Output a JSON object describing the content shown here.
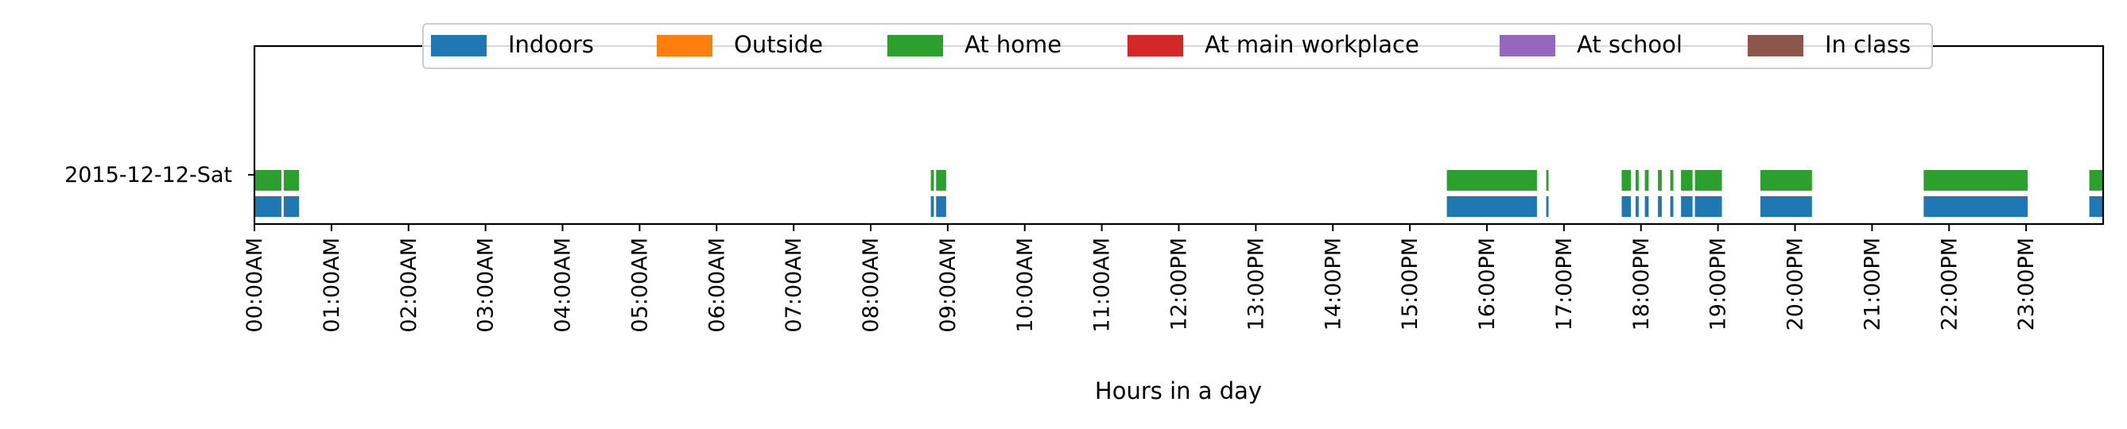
{
  "chart_data": {
    "type": "bar",
    "orientation": "horizontal-timeline",
    "xlabel": "Hours in a day",
    "xlim": [
      0,
      24
    ],
    "x_tick_labels": [
      "00:00AM",
      "01:00AM",
      "02:00AM",
      "03:00AM",
      "04:00AM",
      "05:00AM",
      "06:00AM",
      "07:00AM",
      "08:00AM",
      "09:00AM",
      "10:00AM",
      "11:00AM",
      "12:00PM",
      "13:00PM",
      "14:00PM",
      "15:00PM",
      "16:00PM",
      "17:00PM",
      "18:00PM",
      "19:00PM",
      "20:00PM",
      "21:00PM",
      "22:00PM",
      "23:00PM"
    ],
    "row_label": "2015-12-12-Sat",
    "legend_position": "top-center",
    "grid": false,
    "legend": [
      {
        "name": "Indoors",
        "color": "#1f77b4"
      },
      {
        "name": "Outside",
        "color": "#ff7f0e"
      },
      {
        "name": "At home",
        "color": "#2ca02c"
      },
      {
        "name": "At main workplace",
        "color": "#d62728"
      },
      {
        "name": "At school",
        "color": "#9467bd"
      },
      {
        "name": "In class",
        "color": "#8c564b"
      }
    ],
    "series": [
      {
        "name": "At home",
        "color": "#2ca02c",
        "segments": [
          [
            0.0,
            0.35
          ],
          [
            0.38,
            0.58
          ],
          [
            8.78,
            8.82
          ],
          [
            8.85,
            8.98
          ],
          [
            15.48,
            16.65
          ],
          [
            16.77,
            16.8
          ],
          [
            17.75,
            17.87
          ],
          [
            17.93,
            17.97
          ],
          [
            18.05,
            18.1
          ],
          [
            18.22,
            18.27
          ],
          [
            18.38,
            18.42
          ],
          [
            18.52,
            18.67
          ],
          [
            18.7,
            19.05
          ],
          [
            19.55,
            20.22
          ],
          [
            21.67,
            23.02
          ],
          [
            23.82,
            24.0
          ]
        ]
      },
      {
        "name": "Indoors",
        "color": "#1f77b4",
        "segments": [
          [
            0.0,
            0.35
          ],
          [
            0.38,
            0.58
          ],
          [
            8.78,
            8.82
          ],
          [
            8.85,
            8.98
          ],
          [
            15.48,
            16.65
          ],
          [
            16.77,
            16.8
          ],
          [
            17.75,
            17.87
          ],
          [
            17.93,
            17.97
          ],
          [
            18.05,
            18.1
          ],
          [
            18.22,
            18.27
          ],
          [
            18.38,
            18.42
          ],
          [
            18.52,
            18.67
          ],
          [
            18.7,
            19.05
          ],
          [
            19.55,
            20.22
          ],
          [
            21.67,
            23.02
          ],
          [
            23.82,
            24.0
          ]
        ]
      }
    ]
  }
}
